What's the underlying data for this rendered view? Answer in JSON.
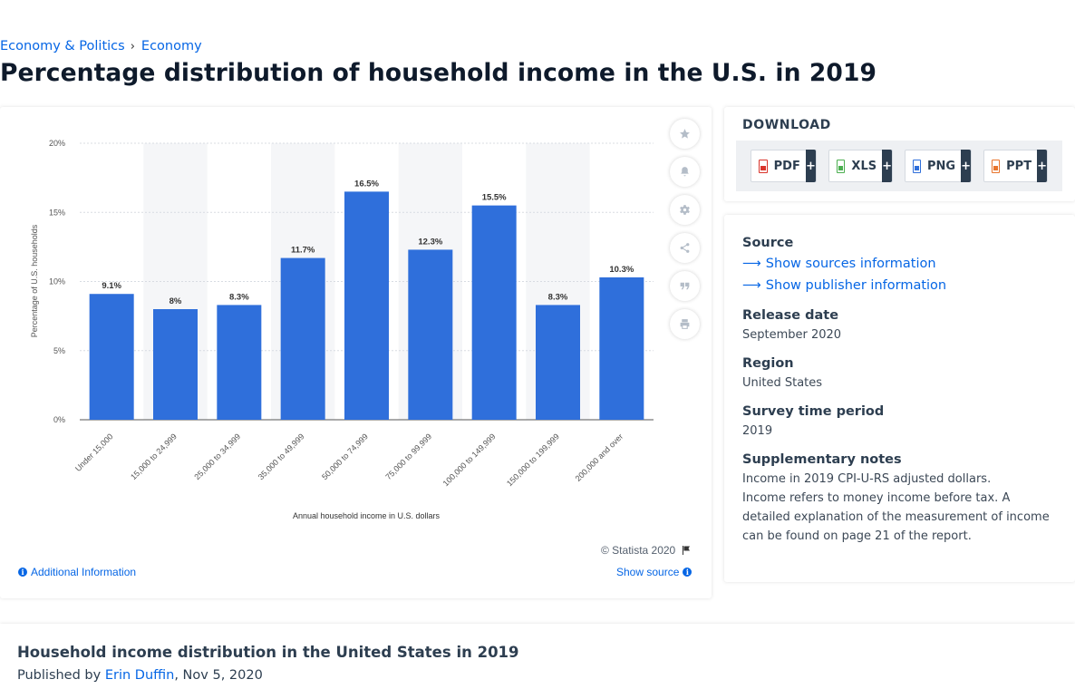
{
  "breadcrumb": {
    "item1": "Economy & Politics",
    "separator": "›",
    "item2": "Economy"
  },
  "page_title": "Percentage distribution of household income in the U.S. in 2019",
  "tools": [
    "star-icon",
    "bell-icon",
    "gear-icon",
    "share-icon",
    "quote-icon",
    "print-icon"
  ],
  "chart_footer": {
    "copyright": "© Statista 2020",
    "additional_info": "Additional Information",
    "show_source": "Show source"
  },
  "chart_data": {
    "type": "bar",
    "categories": [
      "Under 15,000",
      "15,000 to 24,999",
      "25,000 to 34,999",
      "35,000 to 49,999",
      "50,000 to 74,999",
      "75,000 to 99,999",
      "100,000 to 149,999",
      "150,000 to 199,999",
      "200,000 and over"
    ],
    "values": [
      9.1,
      8,
      8.3,
      11.7,
      16.5,
      12.3,
      15.5,
      8.3,
      10.3
    ],
    "value_labels": [
      "9.1%",
      "8%",
      "8.3%",
      "11.7%",
      "16.5%",
      "12.3%",
      "15.5%",
      "8.3%",
      "10.3%"
    ],
    "title": "",
    "xlabel": "Annual household income in U.S. dollars",
    "ylabel": "Percentage of U.S. households",
    "ylim": [
      0,
      20
    ],
    "yticks": [
      "0%",
      "5%",
      "10%",
      "15%",
      "20%"
    ],
    "grid": true,
    "bar_color": "#2f6fdb"
  },
  "download": {
    "title": "DOWNLOAD",
    "buttons": [
      {
        "label": "PDF",
        "icon": "pdf-icon",
        "color": "#d9342b"
      },
      {
        "label": "XLS",
        "icon": "xls-icon",
        "color": "#4caf50"
      },
      {
        "label": "PNG",
        "icon": "png-icon",
        "color": "#2f6fdb"
      },
      {
        "label": "PPT",
        "icon": "ppt-icon",
        "color": "#e8742c"
      }
    ],
    "plus": "+"
  },
  "details": {
    "source_head": "Source",
    "source_link1": "Show sources information",
    "source_link2": "Show publisher information",
    "release_head": "Release date",
    "release_val": "September 2020",
    "region_head": "Region",
    "region_val": "United States",
    "survey_head": "Survey time period",
    "survey_val": "2019",
    "notes_head": "Supplementary notes",
    "notes_line1": "Income in 2019 CPI-U-RS adjusted dollars.",
    "notes_line2": "Income refers to money income before tax. A detailed explanation of the measurement of income can be found on page 21 of the report."
  },
  "bottom": {
    "title": "Household income distribution in the United States in 2019",
    "published_by": "Published by",
    "author": "Erin Duffin",
    "date": ", Nov 5, 2020"
  }
}
